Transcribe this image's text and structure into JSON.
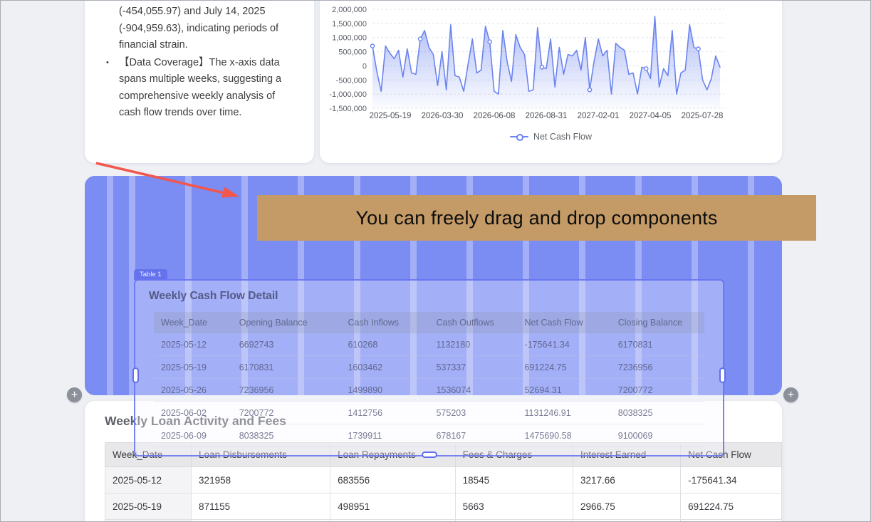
{
  "colors": {
    "accent_line": "#6b84ef",
    "dropzone_bg": "#7b8cf2",
    "banner_bg": "#c49b66",
    "arrow_red": "#f2574d",
    "page_bg": "#eef0f4"
  },
  "icons": {
    "plus": "+"
  },
  "insight_card": {
    "continuation": "(-454,055.97) and July 14, 2025 (-904,959.63), indicating periods of financial strain.",
    "bullet_marker": "•",
    "bullet_text": "【Data Coverage】The x-axis data spans multiple weeks, suggesting a comprehensive weekly analysis of cash flow trends over time."
  },
  "chart_data": {
    "type": "area",
    "title": "",
    "xlabel": "",
    "ylabel": "",
    "ylim": [
      -1500000,
      2000000
    ],
    "grid": "dashed-horizontal",
    "legend": {
      "label": "Net Cash Flow",
      "position": "bottom"
    },
    "y_tick_labels": [
      "2,000,000",
      "1,500,000",
      "1,000,000",
      "500,000",
      "0",
      "-500,000",
      "-1,000,000",
      "-1,500,000"
    ],
    "x_tick_labels": [
      "2025-05-19",
      "2026-03-30",
      "2026-06-08",
      "2026-08-31",
      "2027-02-01",
      "2027-04-05",
      "2025-07-28"
    ],
    "series": [
      {
        "name": "Net Cash Flow",
        "values": [
          700000,
          -200000,
          -900000,
          700000,
          450000,
          250000,
          550000,
          -400000,
          600000,
          -250000,
          -300000,
          950000,
          1250000,
          650000,
          400000,
          -700000,
          500000,
          -850000,
          1450000,
          -350000,
          -400000,
          -900000,
          50000,
          950000,
          -250000,
          -150000,
          1400000,
          850000,
          -900000,
          -1000000,
          1250000,
          150000,
          -550000,
          1100000,
          650000,
          400000,
          -900000,
          -850000,
          1350000,
          -50000,
          -100000,
          950000,
          -750000,
          650000,
          -300000,
          400000,
          350000,
          550000,
          -150000,
          1000000,
          -850000,
          150000,
          950000,
          350000,
          550000,
          -1000000,
          800000,
          650000,
          550000,
          -300000,
          -250000,
          -1000000,
          -50000,
          -100000,
          -450000,
          1750000,
          -750000,
          -100000,
          -350000,
          1250000,
          -1000000,
          -250000,
          -150000,
          1450000,
          650000,
          600000,
          -500000,
          -850000,
          -450000,
          350000,
          -50000
        ]
      }
    ],
    "marker_indices": [
      0,
      11,
      27,
      39,
      50,
      63,
      75
    ]
  },
  "dropzone": {
    "banner_text": "You can freely drag and drop components"
  },
  "overlay_table": {
    "tag": "Table 1",
    "title": "Weekly Cash Flow Detail",
    "columns": [
      "Week_Date",
      "Opening Balance",
      "Cash Inflows",
      "Cash Outflows",
      "Net Cash Flow",
      "Closing Balance"
    ],
    "rows": [
      [
        "2025-05-12",
        "6692743",
        "610268",
        "1132180",
        "-175641.34",
        "6170831"
      ],
      [
        "2025-05-19",
        "6170831",
        "1603462",
        "537337",
        "691224.75",
        "7236956"
      ],
      [
        "2025-05-26",
        "7236956",
        "1499890",
        "1536074",
        "52694.31",
        "7200772"
      ],
      [
        "2025-06-02",
        "7200772",
        "1412756",
        "575203",
        "1131246.91",
        "8038325"
      ],
      [
        "2025-06-09",
        "8038325",
        "1739911",
        "678167",
        "1475690.58",
        "9100069"
      ]
    ]
  },
  "loan_table": {
    "title": "Weekly Loan Activity and Fees",
    "columns": [
      "Week_Date",
      "Loan Disbursements",
      "Loan Repayments",
      "Fees & Charges",
      "Interest Earned",
      "Net Cash Flow"
    ],
    "rows": [
      [
        "2025-05-12",
        "321958",
        "683556",
        "18545",
        "3217.66",
        "-175641.34"
      ],
      [
        "2025-05-19",
        "871155",
        "498951",
        "5663",
        "2966.75",
        "691224.75"
      ],
      [
        "",
        "",
        "",
        "",
        "",
        ""
      ]
    ]
  }
}
